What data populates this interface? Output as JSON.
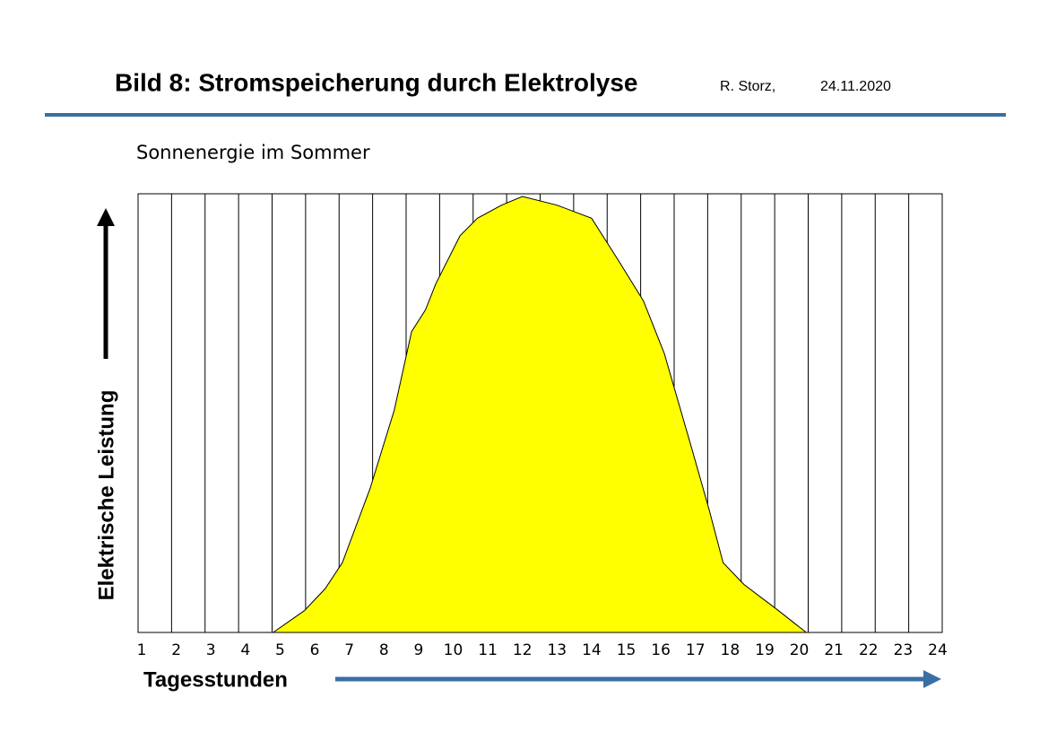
{
  "header": {
    "title": "Bild 8:  Stromspeicherung durch Elektrolyse",
    "author": "R. Storz,",
    "date": "24.11.2020"
  },
  "chart_data": {
    "type": "area",
    "title": "Sonnenergie im Sommer",
    "x_label": "Tagesstunden",
    "y_label": "Elektrische Leistung",
    "categories": [
      "1",
      "2",
      "3",
      "4",
      "5",
      "6",
      "7",
      "8",
      "9",
      "10",
      "11",
      "12",
      "13",
      "14",
      "15",
      "16",
      "17",
      "18",
      "19",
      "20",
      "21",
      "22",
      "23",
      "24"
    ],
    "x": [
      4.8,
      5.7,
      6.3,
      6.8,
      7.6,
      8.3,
      8.8,
      9.2,
      9.5,
      10.2,
      10.7,
      11.4,
      12.0,
      13.0,
      14.0,
      14.8,
      15.5,
      16.1,
      16.9,
      17.4,
      17.8,
      18.4,
      19.4,
      20.2
    ],
    "values": [
      0,
      5,
      10,
      16,
      33,
      51,
      69,
      74,
      80,
      91,
      95,
      98,
      100,
      98,
      95,
      85,
      76,
      64,
      42,
      28,
      16,
      11,
      5,
      0
    ],
    "color": "#ffff00",
    "xlim": [
      1,
      24
    ],
    "ylim": [
      0,
      100
    ],
    "grid": true
  }
}
